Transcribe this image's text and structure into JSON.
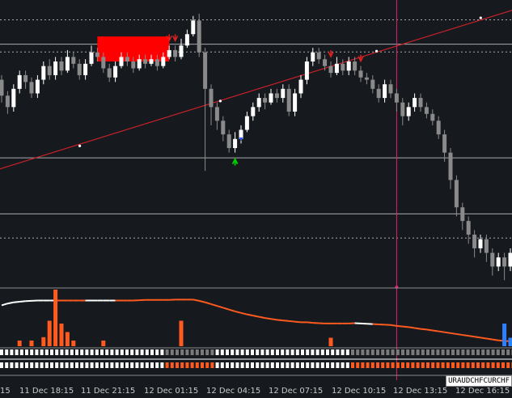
{
  "symbol_tag": "URAUDCHFCURCHF",
  "colors": {
    "background": "#161a1e",
    "bull_candle": "#ffffff",
    "bear_candle": "#8a8a8a",
    "trendline": "#c8202a",
    "vertical_marker": "#e0207a",
    "zone_fill": "#ff0000",
    "signal_up": "#00cc00",
    "signal_down": "#dd2020",
    "hist_orange": "#ff5a1f",
    "hist_blue": "#2f7fff",
    "osc_white": "#ffffff",
    "osc_orange": "#ff5a1f",
    "level_line": "#cfcfcf"
  },
  "chart_data": {
    "type": "candlestick",
    "x_axis_labels": [
      "15",
      "11 Dec 18:15",
      "11 Dec 21:15",
      "12 Dec 01:15",
      "12 Dec 04:15",
      "12 Dec 07:15",
      "12 Dec 10:15",
      "12 Dec 13:15",
      "12 Dec 16:15"
    ],
    "candles": [
      [
        0.7,
        0.63,
        0.72,
        0.6
      ],
      [
        0.63,
        0.58,
        0.65,
        0.55
      ],
      [
        0.58,
        0.66,
        0.68,
        0.56
      ],
      [
        0.66,
        0.72,
        0.74,
        0.64
      ],
      [
        0.72,
        0.69,
        0.74,
        0.66
      ],
      [
        0.69,
        0.64,
        0.71,
        0.62
      ],
      [
        0.64,
        0.7,
        0.72,
        0.62
      ],
      [
        0.7,
        0.76,
        0.78,
        0.68
      ],
      [
        0.76,
        0.72,
        0.79,
        0.7
      ],
      [
        0.72,
        0.78,
        0.8,
        0.7
      ],
      [
        0.78,
        0.74,
        0.8,
        0.72
      ],
      [
        0.74,
        0.8,
        0.83,
        0.73
      ],
      [
        0.8,
        0.77,
        0.82,
        0.75
      ],
      [
        0.77,
        0.72,
        0.79,
        0.7
      ],
      [
        0.72,
        0.77,
        0.79,
        0.7
      ],
      [
        0.77,
        0.82,
        0.85,
        0.76
      ],
      [
        0.82,
        0.8,
        0.84,
        0.78
      ],
      [
        0.8,
        0.75,
        0.82,
        0.73
      ],
      [
        0.75,
        0.71,
        0.77,
        0.69
      ],
      [
        0.71,
        0.76,
        0.78,
        0.69
      ],
      [
        0.76,
        0.8,
        0.82,
        0.75
      ],
      [
        0.8,
        0.78,
        0.82,
        0.76
      ],
      [
        0.78,
        0.75,
        0.8,
        0.73
      ],
      [
        0.75,
        0.79,
        0.81,
        0.74
      ],
      [
        0.79,
        0.77,
        0.81,
        0.75
      ],
      [
        0.77,
        0.79,
        0.81,
        0.76
      ],
      [
        0.79,
        0.76,
        0.81,
        0.74
      ],
      [
        0.76,
        0.8,
        0.82,
        0.75
      ],
      [
        0.8,
        0.83,
        0.85,
        0.79
      ],
      [
        0.83,
        0.8,
        0.85,
        0.78
      ],
      [
        0.8,
        0.85,
        0.88,
        0.79
      ],
      [
        0.85,
        0.9,
        0.92,
        0.84
      ],
      [
        0.9,
        0.96,
        0.98,
        0.89
      ],
      [
        0.96,
        0.82,
        0.99,
        0.8
      ],
      [
        0.82,
        0.66,
        0.84,
        0.3
      ],
      [
        0.66,
        0.58,
        0.68,
        0.5
      ],
      [
        0.58,
        0.52,
        0.6,
        0.48
      ],
      [
        0.52,
        0.46,
        0.54,
        0.43
      ],
      [
        0.46,
        0.4,
        0.48,
        0.38
      ],
      [
        0.4,
        0.44,
        0.47,
        0.38
      ],
      [
        0.44,
        0.48,
        0.5,
        0.42
      ],
      [
        0.48,
        0.54,
        0.56,
        0.47
      ],
      [
        0.54,
        0.58,
        0.6,
        0.52
      ],
      [
        0.58,
        0.62,
        0.64,
        0.56
      ],
      [
        0.62,
        0.6,
        0.64,
        0.57
      ],
      [
        0.6,
        0.64,
        0.66,
        0.59
      ],
      [
        0.64,
        0.62,
        0.66,
        0.6
      ],
      [
        0.62,
        0.66,
        0.68,
        0.6
      ],
      [
        0.66,
        0.56,
        0.68,
        0.54
      ],
      [
        0.56,
        0.64,
        0.66,
        0.54
      ],
      [
        0.64,
        0.7,
        0.72,
        0.62
      ],
      [
        0.7,
        0.78,
        0.8,
        0.68
      ],
      [
        0.78,
        0.82,
        0.84,
        0.76
      ],
      [
        0.82,
        0.79,
        0.84,
        0.77
      ],
      [
        0.79,
        0.76,
        0.81,
        0.74
      ],
      [
        0.76,
        0.73,
        0.78,
        0.71
      ],
      [
        0.73,
        0.77,
        0.8,
        0.72
      ],
      [
        0.77,
        0.74,
        0.79,
        0.72
      ],
      [
        0.74,
        0.78,
        0.8,
        0.72
      ],
      [
        0.78,
        0.74,
        0.8,
        0.72
      ],
      [
        0.74,
        0.71,
        0.76,
        0.69
      ],
      [
        0.71,
        0.7,
        0.73,
        0.68
      ],
      [
        0.7,
        0.66,
        0.72,
        0.64
      ],
      [
        0.66,
        0.62,
        0.68,
        0.6
      ],
      [
        0.62,
        0.68,
        0.7,
        0.6
      ],
      [
        0.68,
        0.64,
        0.7,
        0.62
      ],
      [
        0.64,
        0.6,
        0.66,
        0.56
      ],
      [
        0.6,
        0.54,
        0.62,
        0.5
      ],
      [
        0.54,
        0.58,
        0.6,
        0.52
      ],
      [
        0.58,
        0.62,
        0.64,
        0.56
      ],
      [
        0.62,
        0.58,
        0.64,
        0.56
      ],
      [
        0.58,
        0.55,
        0.6,
        0.53
      ],
      [
        0.55,
        0.52,
        0.57,
        0.5
      ],
      [
        0.52,
        0.46,
        0.54,
        0.44
      ],
      [
        0.46,
        0.38,
        0.48,
        0.34
      ],
      [
        0.38,
        0.26,
        0.4,
        0.22
      ],
      [
        0.26,
        0.14,
        0.28,
        0.1
      ],
      [
        0.14,
        0.08,
        0.16,
        0.04
      ],
      [
        0.08,
        0.02,
        0.1,
        -0.02
      ],
      [
        0.02,
        -0.04,
        0.04,
        -0.08
      ],
      [
        -0.04,
        0.0,
        0.02,
        -0.06
      ],
      [
        0.0,
        -0.06,
        0.02,
        -0.1
      ],
      [
        -0.06,
        -0.12,
        -0.04,
        -0.16
      ],
      [
        -0.12,
        -0.08,
        -0.06,
        -0.14
      ],
      [
        -0.08,
        -0.12,
        -0.06,
        -0.18
      ],
      [
        -0.12,
        -0.06,
        -0.04,
        -0.14
      ],
      [
        -0.06,
        -0.1,
        -0.04,
        -0.12
      ]
    ],
    "horizontal_levels": [
      0.963,
      0.856,
      0.822,
      0.357,
      0.111,
      0.005
    ],
    "trendline": {
      "start": [
        0,
        0.3
      ],
      "end": [
        87,
        1.03
      ]
    },
    "vertical_marker_index": 66,
    "zone": {
      "from_index": 16,
      "to_index": 28,
      "low": 0.78,
      "high": 0.89
    },
    "signals_down": [
      28,
      29,
      55,
      60
    ],
    "signals_up": [
      39
    ],
    "signal_blue": [
      40
    ],
    "oscillator": {
      "values": [
        0.6,
        0.66,
        0.7,
        0.72,
        0.74,
        0.75,
        0.76,
        0.76,
        0.76,
        0.76,
        0.76,
        0.76,
        0.76,
        0.76,
        0.76,
        0.76,
        0.76,
        0.76,
        0.76,
        0.76,
        0.76,
        0.76,
        0.76,
        0.77,
        0.78,
        0.78,
        0.78,
        0.78,
        0.78,
        0.79,
        0.79,
        0.79,
        0.79,
        0.75,
        0.7,
        0.64,
        0.58,
        0.52,
        0.46,
        0.4,
        0.35,
        0.3,
        0.26,
        0.22,
        0.18,
        0.15,
        0.12,
        0.1,
        0.08,
        0.06,
        0.04,
        0.04,
        0.02,
        0.01,
        0.0,
        0.0,
        0.0,
        0.0,
        0.0,
        0.01,
        0.0,
        -0.01,
        -0.02,
        -0.03,
        -0.04,
        -0.05,
        -0.08,
        -0.1,
        -0.12,
        -0.15,
        -0.18,
        -0.2,
        -0.23,
        -0.26,
        -0.29,
        -0.32,
        -0.35,
        -0.38,
        -0.41,
        -0.44,
        -0.47,
        -0.5,
        -0.53,
        -0.56,
        -0.58,
        -0.59,
        -0.6
      ],
      "orange_ranges": [
        [
          10,
          14
        ],
        [
          20,
          32
        ],
        [
          60,
          66
        ],
        [
          32,
          60
        ]
      ],
      "white_ranges": [
        [
          0,
          10
        ],
        [
          14,
          20
        ],
        [
          60,
          62
        ]
      ]
    },
    "histogram": [
      [
        3,
        0.1,
        "orange"
      ],
      [
        5,
        0.1,
        "orange"
      ],
      [
        7,
        0.16,
        "orange"
      ],
      [
        8,
        0.45,
        "orange"
      ],
      [
        9,
        1.0,
        "orange"
      ],
      [
        10,
        0.4,
        "orange"
      ],
      [
        11,
        0.25,
        "orange"
      ],
      [
        12,
        0.1,
        "orange"
      ],
      [
        17,
        0.1,
        "orange"
      ],
      [
        30,
        0.45,
        "orange"
      ],
      [
        55,
        0.15,
        "orange"
      ],
      [
        84,
        0.4,
        "blue"
      ],
      [
        85,
        0.15,
        "blue"
      ]
    ],
    "state_bars": {
      "top_row": "wwwwwwwwwwwwwwwwwwwwwwwwwwwwwwwwwggggggggggwwwwwwwwwwwwwwwwwwwwwwwwwwwggggggggggggggggggggggggggggggggg",
      "bottom_row": "wwwwwwwwwwwwwwwwwwwwwwwwwwwwwwwwwoooooooooowwwwwwwwwwwwwwwwwwwwwwwwwwwooooooooooooooooooooooooooooooooo"
    }
  }
}
